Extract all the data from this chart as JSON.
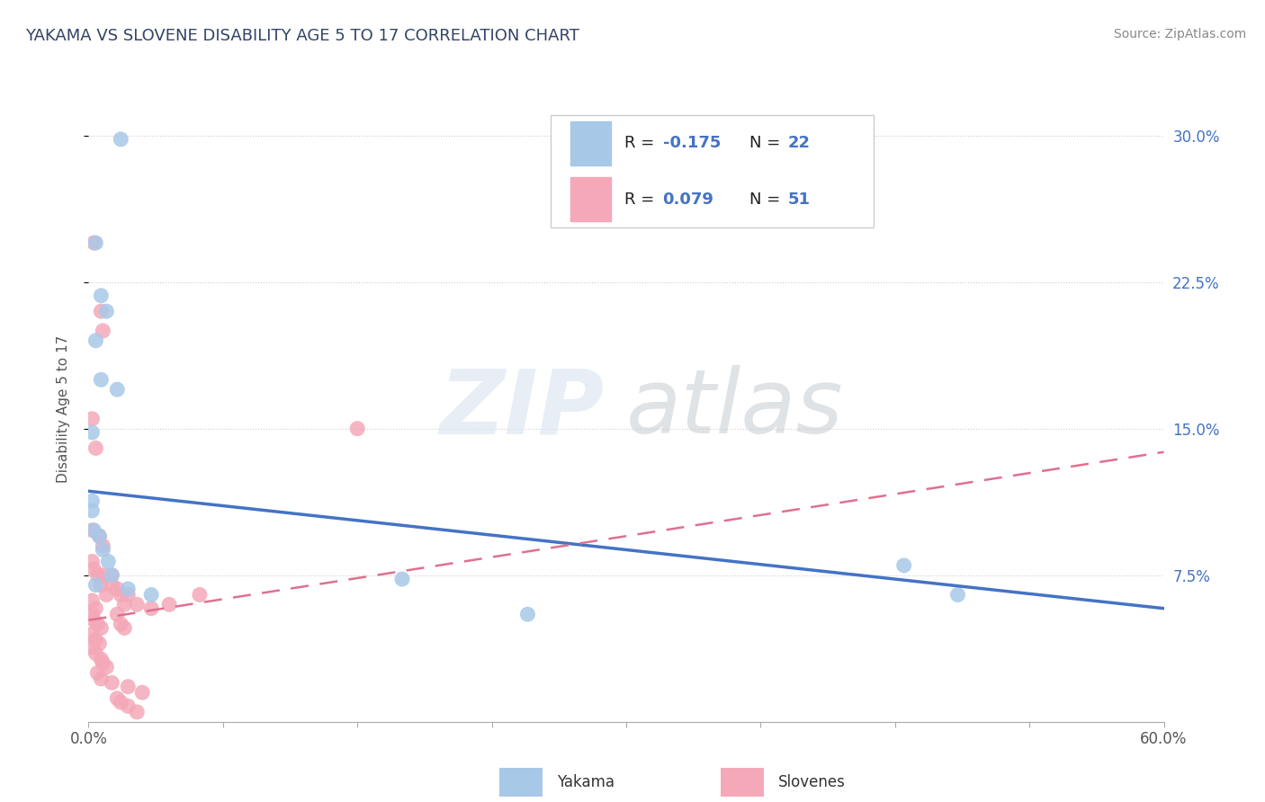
{
  "title": "YAKAMA VS SLOVENE DISABILITY AGE 5 TO 17 CORRELATION CHART",
  "source_text": "Source: ZipAtlas.com",
  "ylabel": "Disability Age 5 to 17",
  "xlim": [
    0.0,
    0.6
  ],
  "ylim": [
    0.0,
    0.32
  ],
  "yakama_color": "#a8c8e8",
  "slovene_color": "#f4a8b8",
  "yakama_line_color": "#4472c4",
  "slovene_line_color": "#e07090",
  "watermark_zip": "ZIP",
  "watermark_atlas": "atlas",
  "yakama_x": [
    0.018,
    0.004,
    0.007,
    0.01,
    0.004,
    0.007,
    0.016,
    0.002,
    0.002,
    0.002,
    0.003,
    0.006,
    0.008,
    0.011,
    0.013,
    0.004,
    0.022,
    0.035,
    0.175,
    0.455,
    0.485,
    0.245
  ],
  "yakama_y": [
    0.298,
    0.245,
    0.218,
    0.21,
    0.195,
    0.175,
    0.17,
    0.148,
    0.113,
    0.108,
    0.098,
    0.095,
    0.088,
    0.082,
    0.075,
    0.07,
    0.068,
    0.065,
    0.073,
    0.08,
    0.065,
    0.055
  ],
  "slovene_x": [
    0.003,
    0.007,
    0.002,
    0.008,
    0.004,
    0.002,
    0.006,
    0.008,
    0.002,
    0.003,
    0.005,
    0.007,
    0.01,
    0.013,
    0.016,
    0.018,
    0.02,
    0.002,
    0.004,
    0.002,
    0.003,
    0.005,
    0.007,
    0.008,
    0.013,
    0.002,
    0.004,
    0.006,
    0.022,
    0.027,
    0.035,
    0.016,
    0.018,
    0.02,
    0.002,
    0.004,
    0.007,
    0.008,
    0.01,
    0.005,
    0.007,
    0.013,
    0.022,
    0.03,
    0.016,
    0.018,
    0.022,
    0.027,
    0.045,
    0.062,
    0.15
  ],
  "slovene_y": [
    0.245,
    0.21,
    0.155,
    0.2,
    0.14,
    0.098,
    0.095,
    0.09,
    0.082,
    0.078,
    0.075,
    0.07,
    0.065,
    0.075,
    0.068,
    0.065,
    0.06,
    0.062,
    0.058,
    0.055,
    0.052,
    0.05,
    0.048,
    0.075,
    0.07,
    0.045,
    0.042,
    0.04,
    0.065,
    0.06,
    0.058,
    0.055,
    0.05,
    0.048,
    0.038,
    0.035,
    0.032,
    0.03,
    0.028,
    0.025,
    0.022,
    0.02,
    0.018,
    0.015,
    0.012,
    0.01,
    0.008,
    0.005,
    0.06,
    0.065,
    0.15
  ],
  "yakama_line_x0": 0.0,
  "yakama_line_x1": 0.6,
  "yakama_line_y0": 0.118,
  "yakama_line_y1": 0.058,
  "slovene_line_x0": 0.0,
  "slovene_line_x1": 0.6,
  "slovene_line_y0": 0.052,
  "slovene_line_y1": 0.138
}
